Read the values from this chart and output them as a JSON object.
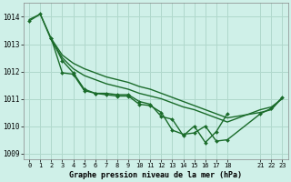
{
  "background_color": "#cff0e8",
  "grid_color": "#b0d8cc",
  "line_color": "#1a6b2a",
  "title": "Graphe pression niveau de la mer (hPa)",
  "ylim": [
    1008.8,
    1014.5
  ],
  "xlim": [
    -0.5,
    23.5
  ],
  "yticks": [
    1009,
    1010,
    1011,
    1012,
    1013,
    1014
  ],
  "xtick_labels": [
    "0",
    "1",
    "2",
    "3",
    "4",
    "5",
    "6",
    "7",
    "8",
    "9",
    "10",
    "11",
    "12",
    "13",
    "14",
    "15",
    "16",
    "17",
    "18",
    "21",
    "22",
    "23"
  ],
  "xtick_pos": [
    0,
    1,
    2,
    3,
    4,
    5,
    6,
    7,
    8,
    9,
    10,
    11,
    12,
    13,
    14,
    15,
    16,
    17,
    18,
    21,
    22,
    23
  ],
  "series": [
    {
      "x": [
        0,
        1,
        2,
        3,
        4,
        5,
        6,
        7,
        8,
        9,
        10,
        11,
        12,
        13,
        14,
        15,
        16,
        17,
        18,
        21,
        22,
        23
      ],
      "y": [
        1013.9,
        1014.1,
        1013.15,
        1012.5,
        1012.1,
        1011.85,
        1011.7,
        1011.55,
        1011.45,
        1011.35,
        1011.2,
        1011.1,
        1011.0,
        1010.85,
        1010.7,
        1010.6,
        1010.45,
        1010.3,
        1010.15,
        1010.6,
        1010.7,
        1011.0
      ],
      "marker": false,
      "lw": 1.0
    },
    {
      "x": [
        2,
        3,
        4,
        5,
        6,
        7,
        8,
        9,
        10,
        11,
        12,
        13,
        14,
        15,
        16,
        17,
        18,
        21,
        22,
        23
      ],
      "y": [
        1013.2,
        1012.6,
        1012.3,
        1012.1,
        1011.95,
        1011.8,
        1011.7,
        1011.6,
        1011.45,
        1011.35,
        1011.2,
        1011.05,
        1010.9,
        1010.75,
        1010.6,
        1010.45,
        1010.3,
        1010.5,
        1010.6,
        1011.05
      ],
      "marker": false,
      "lw": 1.0
    },
    {
      "x": [
        0,
        1,
        2,
        3,
        4,
        5,
        6,
        7,
        8,
        9,
        10,
        11,
        12,
        13,
        14,
        15,
        16,
        17,
        18
      ],
      "y": [
        1013.85,
        1014.1,
        1013.2,
        1011.95,
        1011.9,
        1011.3,
        1011.2,
        1011.2,
        1011.15,
        1011.15,
        1010.9,
        1010.8,
        1010.35,
        1010.25,
        1009.65,
        1010.0,
        1009.4,
        1009.8,
        1010.45
      ],
      "marker": true,
      "lw": 1.0
    },
    {
      "x": [
        2,
        3,
        4,
        5,
        6,
        7,
        8,
        9,
        10,
        11,
        12,
        13,
        14,
        15,
        16,
        17,
        18,
        21,
        22,
        23
      ],
      "y": [
        1013.2,
        1012.4,
        1011.95,
        1011.35,
        1011.2,
        1011.15,
        1011.1,
        1011.1,
        1010.8,
        1010.75,
        1010.5,
        1009.85,
        1009.7,
        1009.75,
        1010.0,
        1009.45,
        1009.5,
        1010.45,
        1010.65,
        1011.05
      ],
      "marker": true,
      "lw": 1.0
    }
  ]
}
